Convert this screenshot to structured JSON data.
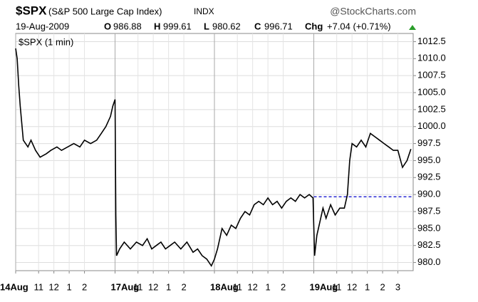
{
  "header": {
    "symbol": "$SPX",
    "name": "(S&P 500 Large Cap Index)",
    "exchange": "INDX",
    "brand": "@StockCharts.com",
    "date": "19-Aug-2009",
    "open_label": "O",
    "open": "986.88",
    "high_label": "H",
    "high": "999.61",
    "low_label": "L",
    "low": "980.62",
    "close_label": "C",
    "close": "996.71",
    "change_label": "Chg",
    "change": "+7.04 (+0.71%)"
  },
  "chart_data": {
    "type": "line",
    "legend": "$SPX (1 min)",
    "color": "#000000",
    "grid": true,
    "x": [
      0,
      0.1,
      0.2,
      0.3,
      0.5,
      0.8,
      1.0,
      1.3,
      1.6,
      2.0,
      2.3,
      2.7,
      3.0,
      3.4,
      3.8,
      4.2,
      4.5,
      4.9,
      5.3,
      5.6,
      5.9,
      6.2,
      6.35,
      6.5,
      6.55,
      6.6,
      6.8,
      7.1,
      7.5,
      7.9,
      8.3,
      8.6,
      8.9,
      9.2,
      9.5,
      9.8,
      10.1,
      10.4,
      10.8,
      11.2,
      11.6,
      11.9,
      12.2,
      12.5,
      12.8,
      13.0,
      13.2,
      13.5,
      13.8,
      14.1,
      14.4,
      14.7,
      15.0,
      15.3,
      15.6,
      15.9,
      16.2,
      16.5,
      16.8,
      17.1,
      17.4,
      17.7,
      18.0,
      18.3,
      18.6,
      18.9,
      19.2,
      19.45,
      19.55,
      19.7,
      19.9,
      20.1,
      20.3,
      20.6,
      20.9,
      21.2,
      21.5,
      21.7,
      21.85,
      22.0,
      22.3,
      22.6,
      22.9,
      23.2,
      23.5,
      23.8,
      24.1,
      24.4,
      24.7,
      25.0,
      25.3,
      25.6,
      25.85
    ],
    "values": [
      1011.5,
      1010,
      1006,
      1003,
      998,
      997,
      998,
      996.5,
      995.5,
      996,
      996.5,
      997,
      996.5,
      997,
      997.5,
      997,
      998,
      997.5,
      998,
      999,
      1000,
      1001.5,
      1003,
      1004,
      987,
      981,
      982,
      983,
      982,
      983,
      982.5,
      983.5,
      982,
      982.5,
      983,
      982,
      982.5,
      983,
      982,
      983,
      981.5,
      982,
      981,
      980.5,
      979.5,
      980.5,
      982,
      985,
      984,
      985.5,
      985,
      986.5,
      987.5,
      987,
      988.5,
      989,
      988.5,
      989.5,
      988.5,
      989,
      988,
      989,
      989.5,
      989,
      990,
      989.5,
      990,
      989.5,
      981,
      984,
      986,
      988,
      986.5,
      988.5,
      987,
      988,
      988,
      990,
      995,
      997.5,
      997,
      998,
      997,
      999,
      998.5,
      998,
      997.5,
      997,
      996.5,
      996.5,
      994,
      995,
      996.7
    ],
    "xlim": [
      0,
      26
    ],
    "xticks": [
      {
        "value": 0,
        "label": "14Aug"
      },
      {
        "value": 1.5,
        "label": "11"
      },
      {
        "value": 2.5,
        "label": "12"
      },
      {
        "value": 3.5,
        "label": "1"
      },
      {
        "value": 4.5,
        "label": "2"
      },
      {
        "value": 6.5,
        "label": "17Aug"
      },
      {
        "value": 8,
        "label": "11"
      },
      {
        "value": 9,
        "label": "12"
      },
      {
        "value": 10,
        "label": "1"
      },
      {
        "value": 11,
        "label": "2"
      },
      {
        "value": 13,
        "label": "18Aug"
      },
      {
        "value": 14.5,
        "label": "11"
      },
      {
        "value": 15.5,
        "label": "12"
      },
      {
        "value": 16.5,
        "label": "1"
      },
      {
        "value": 17.5,
        "label": "2"
      },
      {
        "value": 19.5,
        "label": "19Aug"
      },
      {
        "value": 21,
        "label": "11"
      },
      {
        "value": 22,
        "label": "12"
      },
      {
        "value": 23,
        "label": "1"
      },
      {
        "value": 24,
        "label": "2"
      },
      {
        "value": 25,
        "label": "3"
      }
    ],
    "ylim": [
      978.8,
      1013.7
    ],
    "yticks": [
      {
        "value": 980,
        "label": "980.0"
      },
      982.5,
      {
        "value": 985,
        "label": "985.0"
      },
      987.5,
      {
        "value": 990,
        "label": "990.0"
      },
      992.5,
      {
        "value": 995,
        "label": "995.0"
      },
      997.5,
      {
        "value": 1000,
        "label": "1000.0"
      },
      1002.5,
      {
        "value": 1005,
        "label": "1005.0"
      },
      1007.5,
      {
        "value": 1010,
        "label": "1010.0"
      },
      1012.5
    ],
    "reference_line": {
      "y": 989.67,
      "x": [
        19.5,
        26
      ],
      "color": "#0000cc"
    }
  }
}
